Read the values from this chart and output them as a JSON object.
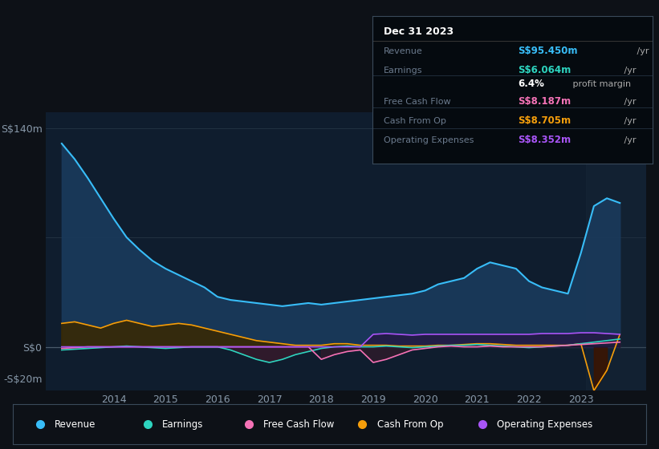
{
  "bg_color": "#0d1117",
  "plot_bg_color": "#0f1d2e",
  "years": [
    2013.0,
    2013.25,
    2013.5,
    2013.75,
    2014.0,
    2014.25,
    2014.5,
    2014.75,
    2015.0,
    2015.25,
    2015.5,
    2015.75,
    2016.0,
    2016.25,
    2016.5,
    2016.75,
    2017.0,
    2017.25,
    2017.5,
    2017.75,
    2018.0,
    2018.25,
    2018.5,
    2018.75,
    2019.0,
    2019.25,
    2019.5,
    2019.75,
    2020.0,
    2020.25,
    2020.5,
    2020.75,
    2021.0,
    2021.25,
    2021.5,
    2021.75,
    2022.0,
    2022.25,
    2022.5,
    2022.75,
    2023.0,
    2023.25,
    2023.5,
    2023.75
  ],
  "revenue": [
    130,
    120,
    108,
    95,
    82,
    70,
    62,
    55,
    50,
    46,
    42,
    38,
    32,
    30,
    29,
    28,
    27,
    26,
    27,
    28,
    27,
    28,
    29,
    30,
    31,
    32,
    33,
    34,
    36,
    40,
    42,
    44,
    50,
    54,
    52,
    50,
    42,
    38,
    36,
    34,
    60,
    90,
    95,
    92
  ],
  "earnings": [
    -2,
    -1.5,
    -1,
    -0.5,
    0,
    0.5,
    0,
    -0.5,
    -1,
    -0.5,
    0,
    0,
    0,
    -2,
    -5,
    -8,
    -10,
    -8,
    -5,
    -3,
    -1,
    0,
    0.5,
    0,
    0,
    0.5,
    0,
    -0.5,
    0,
    0.5,
    1,
    1,
    1.5,
    1,
    0.5,
    0,
    -0.5,
    0,
    0.5,
    1,
    2,
    3,
    4,
    5
  ],
  "free_cash_flow": [
    -1,
    -0.5,
    0,
    0,
    0,
    0,
    0,
    0,
    0,
    0,
    0,
    0,
    0,
    0,
    0,
    0,
    0,
    0,
    0,
    0,
    -8,
    -5,
    -3,
    -2,
    -10,
    -8,
    -5,
    -2,
    -1,
    0,
    0.5,
    0,
    0,
    0.5,
    0,
    0,
    0,
    0,
    0.5,
    1,
    1.5,
    2,
    2.5,
    3
  ],
  "cash_from_op": [
    15,
    16,
    14,
    12,
    15,
    17,
    15,
    13,
    14,
    15,
    14,
    12,
    10,
    8,
    6,
    4,
    3,
    2,
    1,
    1,
    1,
    2,
    2,
    1,
    1,
    1,
    0.5,
    0.5,
    0.5,
    1,
    1,
    1.5,
    2,
    2,
    1.5,
    1,
    1,
    1,
    1,
    1,
    2,
    -28,
    -15,
    8
  ],
  "operating_expenses": [
    0,
    0,
    0,
    0,
    0,
    0,
    0,
    0,
    0,
    0,
    0,
    0,
    0,
    0,
    0,
    0,
    0,
    0,
    0,
    0,
    0,
    0,
    0,
    0,
    8,
    8.5,
    8,
    7.5,
    8,
    8,
    8,
    8,
    8,
    8,
    8,
    8,
    8,
    8.5,
    8.5,
    8.5,
    9,
    9,
    8.5,
    8
  ],
  "revenue_color": "#38bdf8",
  "earnings_color": "#2dd4bf",
  "free_cash_flow_color": "#f472b6",
  "cash_from_op_color": "#f59e0b",
  "operating_expenses_color": "#a855f7",
  "ylim_min": -28,
  "ylim_max": 150,
  "yticks": [
    -20,
    0,
    140
  ],
  "ytick_labels": [
    "-S$20m",
    "S$0",
    "S$140m"
  ],
  "xlabel_years": [
    2014,
    2015,
    2016,
    2017,
    2018,
    2019,
    2020,
    2021,
    2022,
    2023
  ],
  "legend_labels": [
    "Revenue",
    "Earnings",
    "Free Cash Flow",
    "Cash From Op",
    "Operating Expenses"
  ],
  "legend_colors": [
    "#38bdf8",
    "#2dd4bf",
    "#f472b6",
    "#f59e0b",
    "#a855f7"
  ],
  "info_box_title": "Dec 31 2023",
  "info_rows": [
    {
      "label": "Revenue",
      "value": "S$95.450m",
      "unit": " /yr",
      "color": "#38bdf8"
    },
    {
      "label": "Earnings",
      "value": "S$6.064m",
      "unit": " /yr",
      "color": "#2dd4bf"
    },
    {
      "label": "",
      "value": "6.4%",
      "unit": " profit margin",
      "color": "#ffffff"
    },
    {
      "label": "Free Cash Flow",
      "value": "S$8.187m",
      "unit": " /yr",
      "color": "#f472b6"
    },
    {
      "label": "Cash From Op",
      "value": "S$8.705m",
      "unit": " /yr",
      "color": "#f59e0b"
    },
    {
      "label": "Operating Expenses",
      "value": "S$8.352m",
      "unit": " /yr",
      "color": "#a855f7"
    }
  ]
}
